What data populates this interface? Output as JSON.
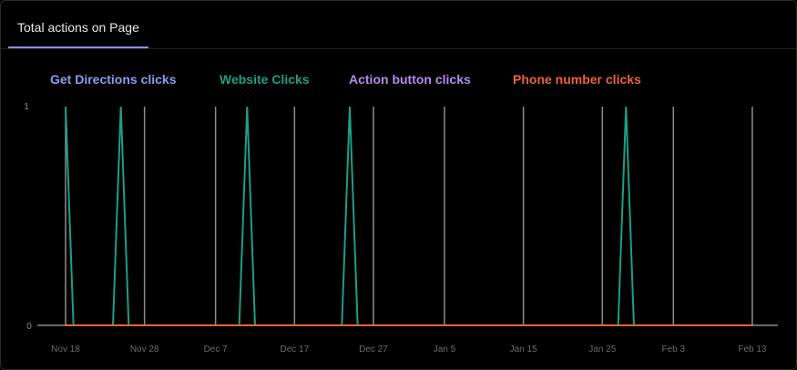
{
  "tab": {
    "label": "Total actions on Page"
  },
  "chart_data": {
    "type": "line",
    "title": "",
    "xlabel": "",
    "ylabel": "",
    "ylim": [
      0,
      1
    ],
    "y_ticks": [
      "0",
      "1"
    ],
    "x_ticks": [
      "Nov 18",
      "Nov 28",
      "Dec 7",
      "Dec 17",
      "Dec 27",
      "Jan 5",
      "Jan 15",
      "Jan 25",
      "Feb 3",
      "Feb 13"
    ],
    "x_start": "Nov 18",
    "legend": "top",
    "series": [
      {
        "name": "Get Directions clicks",
        "color": "#8a9cf0",
        "values": []
      },
      {
        "name": "Website Clicks",
        "color": "#1d9e86",
        "values": [
          {
            "x": "Nov 18",
            "y": 1
          },
          {
            "x": "Nov 25",
            "y": 1
          },
          {
            "x": "Dec 11",
            "y": 1
          },
          {
            "x": "Dec 24",
            "y": 1
          },
          {
            "x": "Jan 28",
            "y": 1
          }
        ]
      },
      {
        "name": "Action button clicks",
        "color": "#b48af0",
        "values": []
      },
      {
        "name": "Phone number clicks",
        "color": "#e8643c",
        "values": [
          {
            "x": "Nov 18",
            "y": 0
          },
          {
            "x": "Feb 13",
            "y": 0
          }
        ]
      }
    ]
  }
}
